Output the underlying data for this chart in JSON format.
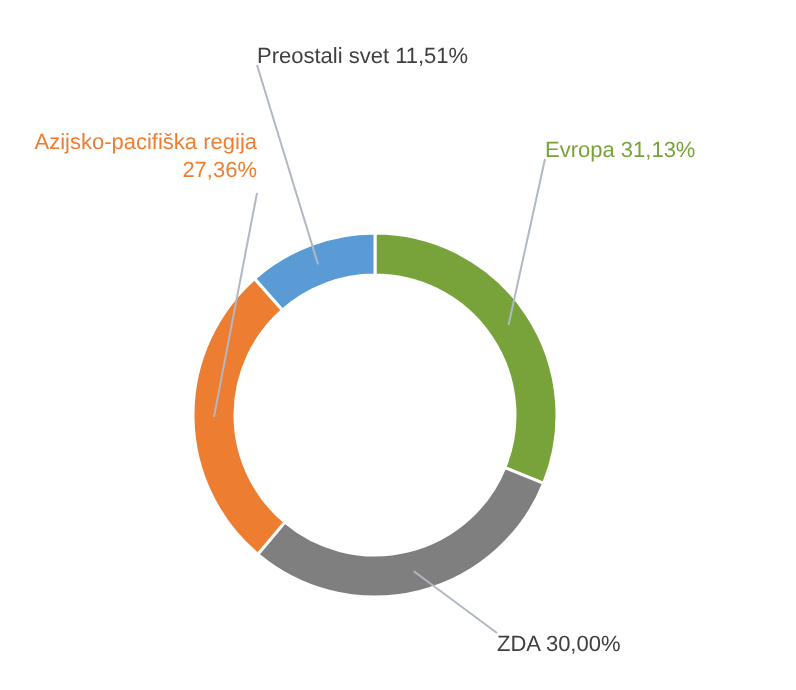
{
  "chart_data": {
    "type": "donut",
    "categories": [
      "Evropa",
      "ZDA",
      "Azijsko-pacifiška regija",
      "Preostali svet"
    ],
    "values": [
      31.13,
      30.0,
      27.36,
      11.51
    ],
    "colors": [
      "#77a33a",
      "#7f7f7f",
      "#ed7d31",
      "#5b9bd5"
    ],
    "value_labels": [
      "31,13%",
      "30,00%",
      "27,36%",
      "11,51%"
    ],
    "legend": false
  }
}
